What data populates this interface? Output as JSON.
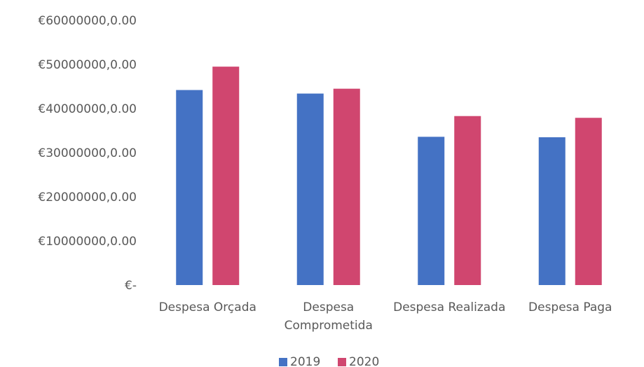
{
  "chart_data": {
    "type": "bar",
    "title": "",
    "xlabel": "",
    "ylabel": "",
    "categories": [
      [
        "Despesa Orçada"
      ],
      [
        "Despesa",
        "Comprometida"
      ],
      [
        "Despesa Realizada"
      ],
      [
        "Despesa Paga"
      ]
    ],
    "series": [
      {
        "name": "2019",
        "color": "#4472C4",
        "values": [
          44200000,
          43400000,
          33600000,
          33500000
        ]
      },
      {
        "name": "2020",
        "color": "#D0466F",
        "values": [
          49500000,
          44500000,
          38300000,
          37900000
        ]
      }
    ],
    "ylim": [
      0,
      60000000
    ],
    "ytick_values": [
      0,
      10000000,
      20000000,
      30000000,
      40000000,
      50000000,
      60000000
    ],
    "ytick_labels": [
      "€-",
      "€10000000,0.00",
      "€20000000,0.00",
      "€30000000,0.00",
      "€40000000,0.00",
      "€50000000,0.00",
      "€60000000,0.00"
    ],
    "grid": false,
    "legend_position": "bottom"
  }
}
